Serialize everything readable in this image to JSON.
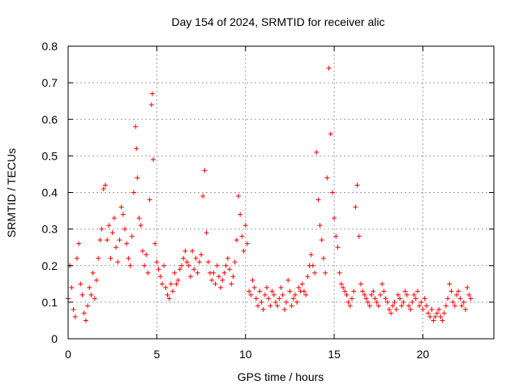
{
  "chart_data": {
    "type": "scatter",
    "title": "Day 154 of 2024, SRMTID for receiver alic",
    "xlabel": "GPS time / hours",
    "ylabel": "SRMTID / TECUs",
    "xlim": [
      0,
      24
    ],
    "ylim": [
      0,
      0.8
    ],
    "xticks": [
      0,
      5,
      10,
      15,
      20
    ],
    "xtick_labels": [
      "0",
      "5",
      "10",
      "15",
      "20"
    ],
    "yticks": [
      0,
      0.1,
      0.2,
      0.3,
      0.4,
      0.5,
      0.6,
      0.7,
      0.8
    ],
    "ytick_labels": [
      "0",
      "0.1",
      "0.2",
      "0.3",
      "0.4",
      "0.5",
      "0.6",
      "0.7",
      "0.8"
    ],
    "grid": true,
    "marker": "+",
    "color": "#ff0000",
    "series": [
      {
        "name": "SRMTID",
        "x": [
          0.0,
          0.1,
          0.2,
          0.3,
          0.4,
          0.5,
          0.6,
          0.7,
          0.8,
          0.9,
          1.0,
          1.1,
          1.2,
          1.3,
          1.4,
          1.5,
          1.6,
          1.7,
          1.8,
          1.9,
          2.0,
          2.1,
          2.2,
          2.3,
          2.4,
          2.5,
          2.6,
          2.7,
          2.8,
          2.9,
          3.0,
          3.1,
          3.2,
          3.3,
          3.4,
          3.5,
          3.6,
          3.7,
          3.8,
          3.85,
          3.9,
          4.0,
          4.1,
          4.2,
          4.3,
          4.4,
          4.5,
          4.6,
          4.7,
          4.75,
          4.8,
          4.9,
          5.0,
          5.1,
          5.2,
          5.3,
          5.4,
          5.5,
          5.6,
          5.7,
          5.8,
          5.9,
          6.0,
          6.1,
          6.2,
          6.3,
          6.4,
          6.5,
          6.6,
          6.7,
          6.8,
          6.9,
          7.0,
          7.1,
          7.2,
          7.3,
          7.4,
          7.5,
          7.6,
          7.7,
          7.8,
          7.9,
          8.0,
          8.1,
          8.2,
          8.3,
          8.4,
          8.5,
          8.6,
          8.7,
          8.8,
          8.9,
          9.0,
          9.1,
          9.2,
          9.3,
          9.4,
          9.5,
          9.6,
          9.7,
          9.8,
          9.9,
          10.0,
          10.1,
          10.2,
          10.3,
          10.4,
          10.5,
          10.6,
          10.7,
          10.8,
          10.9,
          11.0,
          11.1,
          11.2,
          11.3,
          11.4,
          11.5,
          11.6,
          11.7,
          11.8,
          11.9,
          12.0,
          12.1,
          12.2,
          12.3,
          12.4,
          12.5,
          12.6,
          12.7,
          12.8,
          12.9,
          13.0,
          13.1,
          13.2,
          13.3,
          13.4,
          13.5,
          13.6,
          13.7,
          13.8,
          13.9,
          14.0,
          14.1,
          14.2,
          14.3,
          14.4,
          14.5,
          14.6,
          14.7,
          14.8,
          14.9,
          15.0,
          15.1,
          15.2,
          15.3,
          15.4,
          15.5,
          15.6,
          15.7,
          15.8,
          15.9,
          16.0,
          16.1,
          16.2,
          16.3,
          16.4,
          16.5,
          16.6,
          16.7,
          16.8,
          16.9,
          17.0,
          17.1,
          17.2,
          17.3,
          17.4,
          17.5,
          17.6,
          17.7,
          17.8,
          17.9,
          18.0,
          18.1,
          18.2,
          18.3,
          18.4,
          18.5,
          18.6,
          18.7,
          18.8,
          18.9,
          19.0,
          19.1,
          19.2,
          19.3,
          19.4,
          19.5,
          19.6,
          19.7,
          19.8,
          19.9,
          20.0,
          20.1,
          20.2,
          20.3,
          20.4,
          20.5,
          20.6,
          20.7,
          20.8,
          20.9,
          21.0,
          21.1,
          21.2,
          21.3,
          21.4,
          21.5,
          21.6,
          21.7,
          21.8,
          21.9,
          22.0,
          22.1,
          22.2,
          22.3,
          22.4,
          22.5,
          22.6,
          22.7
        ],
        "y": [
          0.11,
          0.2,
          0.14,
          0.08,
          0.06,
          0.22,
          0.26,
          0.15,
          0.12,
          0.07,
          0.05,
          0.09,
          0.14,
          0.12,
          0.18,
          0.11,
          0.16,
          0.22,
          0.27,
          0.3,
          0.41,
          0.42,
          0.27,
          0.31,
          0.22,
          0.29,
          0.33,
          0.25,
          0.21,
          0.27,
          0.36,
          0.34,
          0.3,
          0.26,
          0.22,
          0.2,
          0.28,
          0.4,
          0.58,
          0.52,
          0.44,
          0.33,
          0.31,
          0.24,
          0.2,
          0.23,
          0.18,
          0.38,
          0.64,
          0.67,
          0.49,
          0.26,
          0.21,
          0.19,
          0.17,
          0.15,
          0.2,
          0.14,
          0.12,
          0.11,
          0.15,
          0.13,
          0.18,
          0.15,
          0.16,
          0.19,
          0.2,
          0.22,
          0.24,
          0.21,
          0.2,
          0.17,
          0.24,
          0.19,
          0.22,
          0.18,
          0.21,
          0.23,
          0.39,
          0.46,
          0.29,
          0.21,
          0.18,
          0.16,
          0.18,
          0.15,
          0.2,
          0.17,
          0.14,
          0.16,
          0.18,
          0.2,
          0.22,
          0.19,
          0.15,
          0.17,
          0.21,
          0.27,
          0.39,
          0.34,
          0.28,
          0.24,
          0.31,
          0.26,
          0.13,
          0.12,
          0.16,
          0.14,
          0.11,
          0.09,
          0.13,
          0.1,
          0.08,
          0.12,
          0.14,
          0.11,
          0.09,
          0.13,
          0.12,
          0.1,
          0.09,
          0.11,
          0.14,
          0.12,
          0.08,
          0.1,
          0.16,
          0.13,
          0.09,
          0.11,
          0.12,
          0.1,
          0.14,
          0.13,
          0.15,
          0.13,
          0.12,
          0.17,
          0.2,
          0.23,
          0.2,
          0.18,
          0.51,
          0.38,
          0.31,
          0.27,
          0.22,
          0.18,
          0.44,
          0.74,
          0.56,
          0.4,
          0.33,
          0.28,
          0.25,
          0.18,
          0.15,
          0.14,
          0.13,
          0.12,
          0.1,
          0.09,
          0.11,
          0.13,
          0.36,
          0.42,
          0.28,
          0.15,
          0.13,
          0.12,
          0.11,
          0.1,
          0.09,
          0.12,
          0.13,
          0.11,
          0.1,
          0.09,
          0.12,
          0.15,
          0.13,
          0.11,
          0.1,
          0.08,
          0.07,
          0.09,
          0.1,
          0.08,
          0.12,
          0.11,
          0.09,
          0.1,
          0.13,
          0.12,
          0.09,
          0.08,
          0.1,
          0.12,
          0.11,
          0.13,
          0.09,
          0.1,
          0.08,
          0.11,
          0.09,
          0.07,
          0.06,
          0.08,
          0.05,
          0.06,
          0.07,
          0.08,
          0.06,
          0.05,
          0.07,
          0.09,
          0.11,
          0.15,
          0.13,
          0.1,
          0.09,
          0.12,
          0.13,
          0.11,
          0.09,
          0.1,
          0.08,
          0.14,
          0.12,
          0.11
        ]
      }
    ]
  }
}
